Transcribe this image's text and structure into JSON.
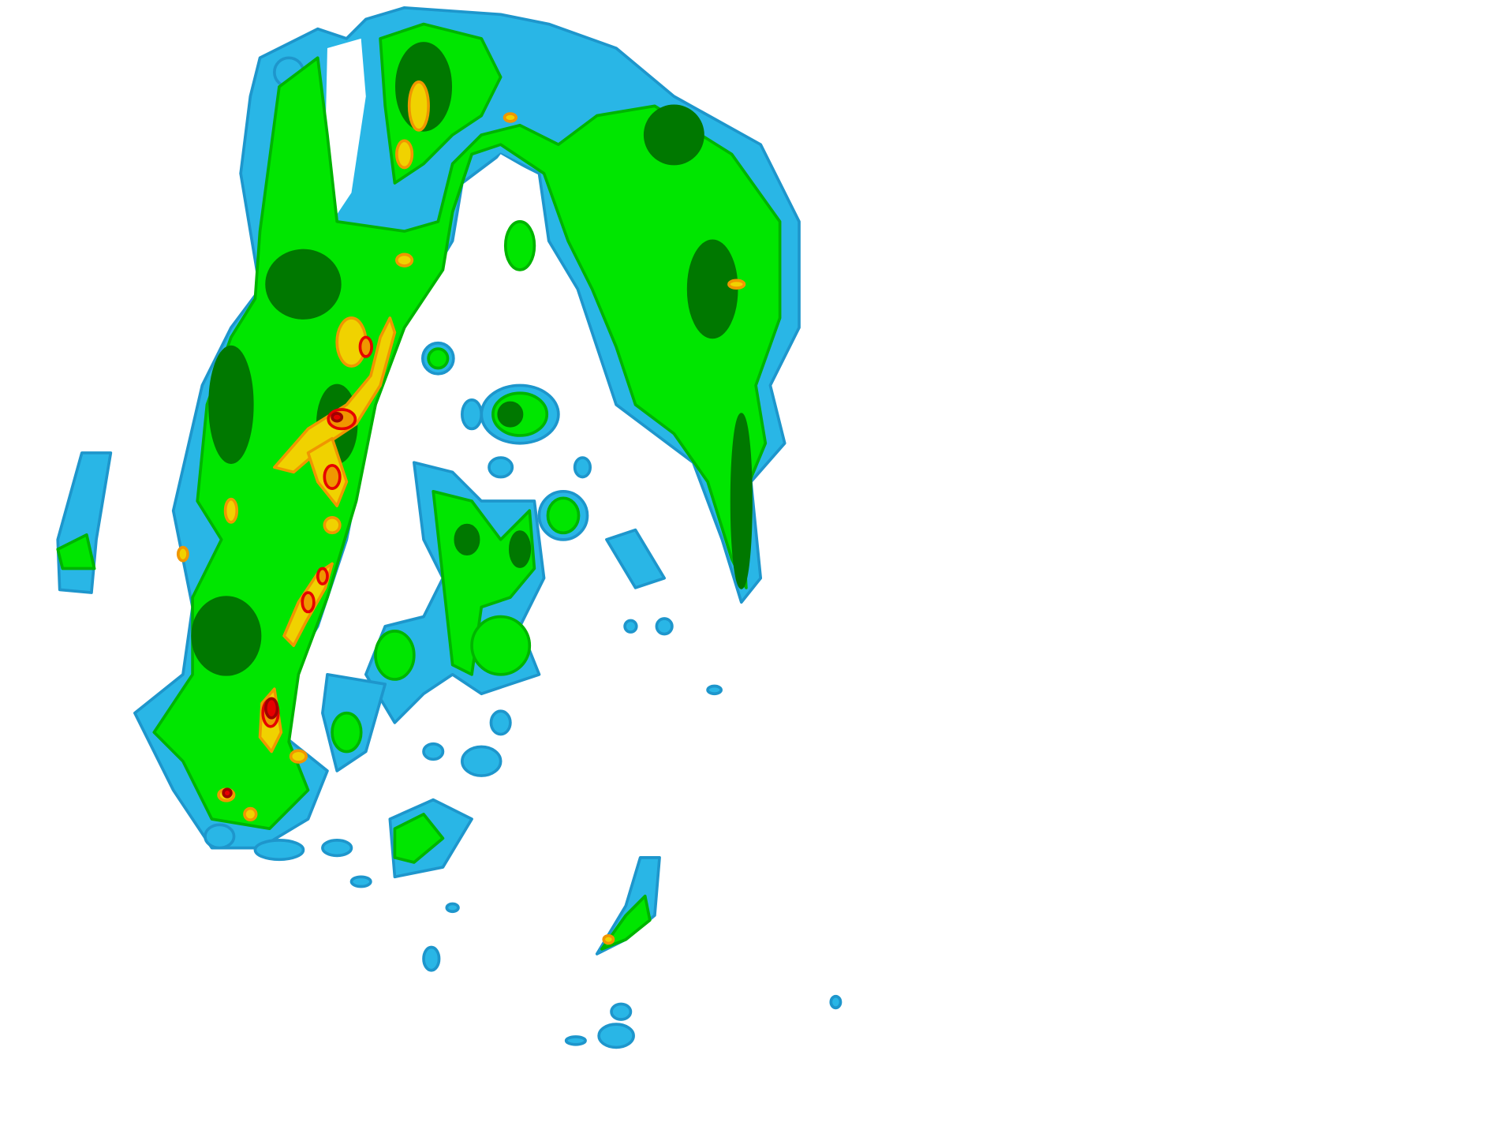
{
  "map": {
    "kind": "radar-reflectivity",
    "background": "#ffffff",
    "palette": {
      "light_blue": "#29b6e6",
      "blue": "#1e96cc",
      "light_green": "#00e600",
      "green": "#00b400",
      "dark_green": "#007800",
      "yellow": "#f0d200",
      "orange": "#f09600",
      "red": "#e60000",
      "dark_red": "#a00000"
    }
  }
}
